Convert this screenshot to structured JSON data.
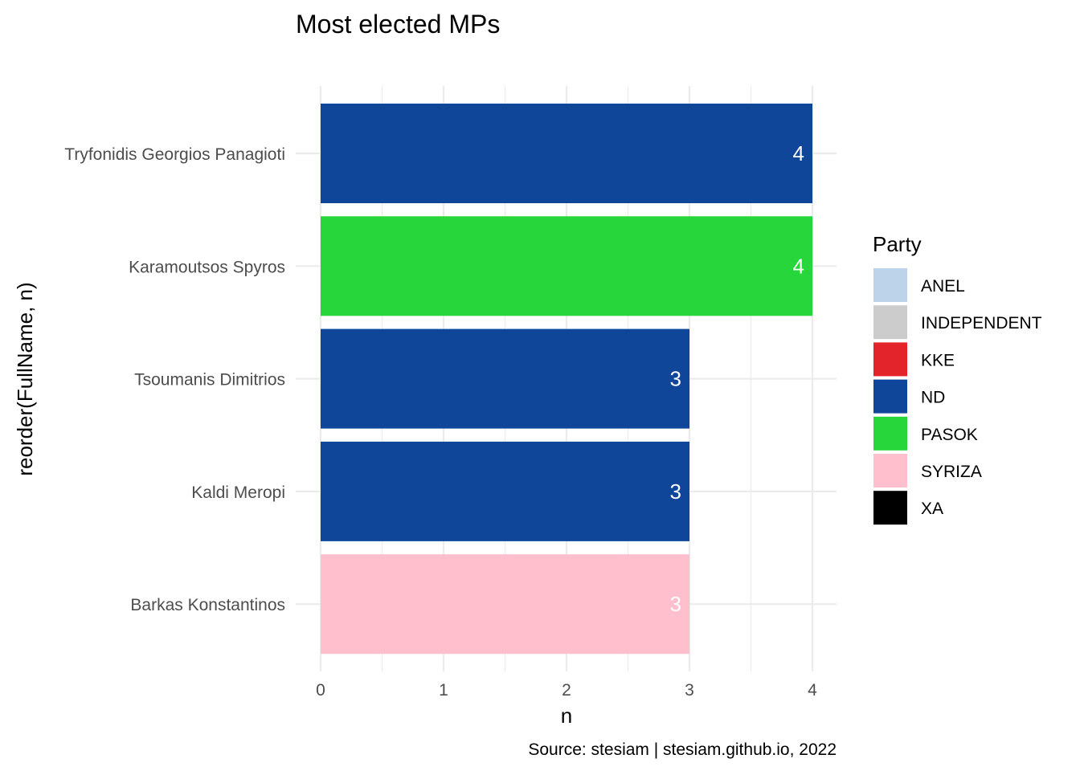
{
  "chart_data": {
    "type": "bar",
    "orientation": "horizontal",
    "title": "Most elected MPs",
    "xlabel": "n",
    "ylabel": "reorder(FullName, n)",
    "caption": "Source: stesiam | stesiam.github.io, 2022",
    "xlim": [
      0,
      4
    ],
    "x_ticks": [
      0,
      1,
      2,
      3,
      4
    ],
    "grid": true,
    "legend": {
      "title": "Party",
      "placement": "right",
      "entries": [
        {
          "label": "ANEL",
          "color": "#bdd3ea"
        },
        {
          "label": "INDEPENDENT",
          "color": "#cccccc"
        },
        {
          "label": "KKE",
          "color": "#e3242b"
        },
        {
          "label": "ND",
          "color": "#0f4699"
        },
        {
          "label": "PASOK",
          "color": "#26d63a"
        },
        {
          "label": "SYRIZA",
          "color": "#ffbfcd"
        },
        {
          "label": "XA",
          "color": "#000000"
        }
      ]
    },
    "bars": [
      {
        "category": "Tryfonidis Georgios Panagioti",
        "value": 4,
        "party": "ND",
        "label": "4"
      },
      {
        "category": "Karamoutsos Spyros",
        "value": 4,
        "party": "PASOK",
        "label": "4"
      },
      {
        "category": "Tsoumanis Dimitrios",
        "value": 3,
        "party": "ND",
        "label": "3"
      },
      {
        "category": "Kaldi Meropi",
        "value": 3,
        "party": "ND",
        "label": "3"
      },
      {
        "category": "Barkas Konstantinos",
        "value": 3,
        "party": "SYRIZA",
        "label": "3"
      }
    ]
  }
}
